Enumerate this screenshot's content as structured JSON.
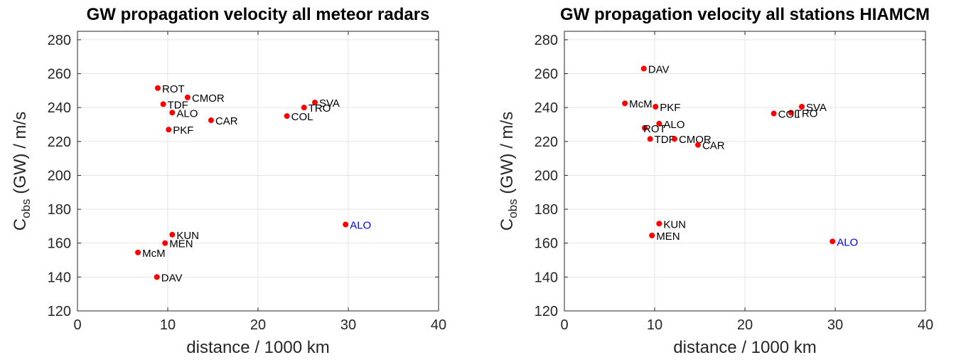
{
  "chart_data": [
    {
      "type": "scatter",
      "title": "GW propagation velocity all meteor radars",
      "xlabel": "distance / 1000 km",
      "ylabel_main": "C",
      "ylabel_sub": "obs",
      "ylabel_rest": " (GW) / m/s",
      "xlim": [
        0,
        40
      ],
      "ylim": [
        120,
        285
      ],
      "xticks": [
        "0",
        "10",
        "20",
        "30",
        "40"
      ],
      "yticks": [
        "120",
        "140",
        "160",
        "180",
        "200",
        "220",
        "240",
        "260",
        "280"
      ],
      "grid": true,
      "marker_color": "#ff0000",
      "points": [
        {
          "label": "ROT",
          "x": 8.9,
          "y": 251.5,
          "color": "#000000"
        },
        {
          "label": "CMOR",
          "x": 12.2,
          "y": 246,
          "color": "#000000"
        },
        {
          "label": "TDF",
          "x": 9.5,
          "y": 242,
          "color": "#000000"
        },
        {
          "label": "ALO",
          "x": 10.5,
          "y": 237,
          "color": "#000000"
        },
        {
          "label": "CAR",
          "x": 14.8,
          "y": 232.5,
          "color": "#000000"
        },
        {
          "label": "PKF",
          "x": 10.1,
          "y": 227,
          "color": "#000000"
        },
        {
          "label": "SVA",
          "x": 26.3,
          "y": 243,
          "color": "#000000"
        },
        {
          "label": "TRO",
          "x": 25.1,
          "y": 240,
          "color": "#000000"
        },
        {
          "label": "COL",
          "x": 23.2,
          "y": 235,
          "color": "#000000"
        },
        {
          "label": "KUN",
          "x": 10.5,
          "y": 165,
          "color": "#000000"
        },
        {
          "label": "MEN",
          "x": 9.7,
          "y": 160,
          "color": "#000000"
        },
        {
          "label": "McM",
          "x": 6.7,
          "y": 154.5,
          "color": "#000000"
        },
        {
          "label": "DAV",
          "x": 8.8,
          "y": 140,
          "color": "#000000"
        },
        {
          "label": "ALO",
          "x": 29.7,
          "y": 171,
          "color": "#0000ff"
        }
      ]
    },
    {
      "type": "scatter",
      "title": "GW propagation velocity all stations HIAMCM",
      "xlabel": "distance / 1000 km",
      "ylabel_main": "C",
      "ylabel_sub": "obs",
      "ylabel_rest": " (GW) / m/s",
      "xlim": [
        0,
        40
      ],
      "ylim": [
        120,
        285
      ],
      "xticks": [
        "0",
        "10",
        "20",
        "30",
        "40"
      ],
      "yticks": [
        "120",
        "140",
        "160",
        "180",
        "200",
        "220",
        "240",
        "260",
        "280"
      ],
      "grid": true,
      "marker_color": "#ff0000",
      "points": [
        {
          "label": "DAV",
          "x": 8.8,
          "y": 263,
          "color": "#000000"
        },
        {
          "label": "McM",
          "x": 6.7,
          "y": 242.5,
          "color": "#000000"
        },
        {
          "label": "PKF",
          "x": 10.1,
          "y": 240.5,
          "color": "#000000"
        },
        {
          "label": "ALO",
          "x": 10.5,
          "y": 230.5,
          "color": "#000000"
        },
        {
          "label": "ROT",
          "x": 8.9,
          "y": 228,
          "color": "#000000"
        },
        {
          "label": "TDF",
          "x": 9.5,
          "y": 221.5,
          "color": "#000000"
        },
        {
          "label": "CMOR",
          "x": 12.2,
          "y": 221.5,
          "color": "#000000"
        },
        {
          "label": "CAR",
          "x": 14.8,
          "y": 218,
          "color": "#000000"
        },
        {
          "label": "SVA",
          "x": 26.3,
          "y": 240.5,
          "color": "#000000"
        },
        {
          "label": "TRO",
          "x": 25.1,
          "y": 237,
          "color": "#000000"
        },
        {
          "label": "COL",
          "x": 23.2,
          "y": 236.5,
          "color": "#000000"
        },
        {
          "label": "KUN",
          "x": 10.5,
          "y": 171.5,
          "color": "#000000"
        },
        {
          "label": "MEN",
          "x": 9.7,
          "y": 164.5,
          "color": "#000000"
        },
        {
          "label": "ALO",
          "x": 29.7,
          "y": 161,
          "color": "#0000ff"
        }
      ]
    }
  ]
}
